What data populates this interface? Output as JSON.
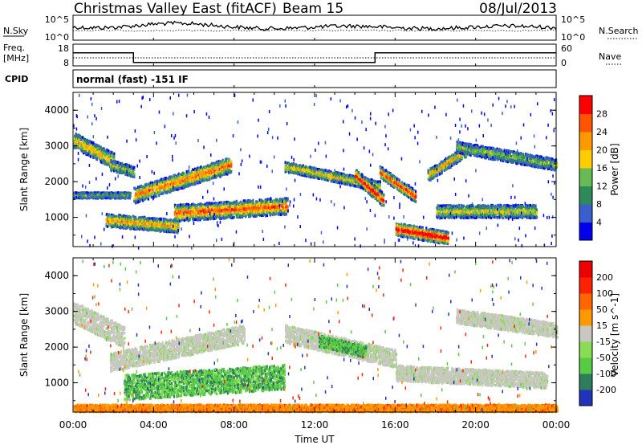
{
  "header": {
    "title": "Christmas Valley East (fitACF)",
    "beam": "Beam 15",
    "date": "08/Jul/2013"
  },
  "strip_nsky": {
    "label": "N.Sky",
    "right_label": "N.Search",
    "ticks_left": [
      "10^5",
      "10^0"
    ],
    "ticks_right": [
      "10^5",
      "10^0"
    ]
  },
  "strip_freq": {
    "label_line1": "Freq.",
    "label_line2": "[MHz]",
    "ticks_left": [
      "18",
      "8"
    ],
    "right_label": "Nave",
    "ticks_right": [
      "60",
      "0"
    ],
    "steps": [
      {
        "t0": 0.0,
        "t1": 3.0,
        "freq": 14.0
      },
      {
        "t0": 3.0,
        "t1": 15.0,
        "freq": 9.6
      },
      {
        "t0": 15.0,
        "t1": 24.0,
        "freq": 14.0
      }
    ]
  },
  "cpid": {
    "label": "CPID",
    "text": "normal (fast) -151 IF"
  },
  "x_axis": {
    "label": "Time UT",
    "ticks": [
      "00:00",
      "04:00",
      "08:00",
      "12:00",
      "16:00",
      "20:00",
      "00:00"
    ]
  },
  "chart_data": [
    {
      "type": "heatmap",
      "name": "power-panel",
      "ylabel": "Slant Range [km]",
      "yticks": [
        "4000",
        "3000",
        "2000",
        "1000"
      ],
      "xrange_hours": [
        0,
        24
      ],
      "yrange_km": [
        180,
        4500
      ],
      "colorbar_label": "Power [dB]",
      "colorbar_ticks": [
        "28",
        "24",
        "20",
        "16",
        "12",
        "8",
        "4"
      ],
      "colorbar_colors": [
        "#0000ee",
        "#3a5fcd",
        "#2e8b57",
        "#66bb55",
        "#ffcc00",
        "#ff9900",
        "#ff5500",
        "#ff0000"
      ],
      "bands": [
        {
          "t0": 0.0,
          "t1": 2.0,
          "r0": 3200,
          "r1": 2600,
          "w": 220,
          "lvl": 0.55
        },
        {
          "t0": 1.8,
          "t1": 3.0,
          "r0": 2500,
          "r1": 2300,
          "w": 150,
          "lvl": 0.4
        },
        {
          "t0": 0.0,
          "t1": 2.8,
          "r0": 1650,
          "r1": 1650,
          "w": 80,
          "lvl": 0.3
        },
        {
          "t0": 1.6,
          "t1": 5.2,
          "r0": 950,
          "r1": 780,
          "w": 180,
          "lvl": 0.6
        },
        {
          "t0": 3.0,
          "t1": 7.8,
          "r0": 1650,
          "r1": 2500,
          "w": 220,
          "lvl": 0.7
        },
        {
          "t0": 5.0,
          "t1": 10.6,
          "r0": 1150,
          "r1": 1350,
          "w": 230,
          "lvl": 0.75
        },
        {
          "t0": 10.5,
          "t1": 15.2,
          "r0": 2450,
          "r1": 1900,
          "w": 140,
          "lvl": 0.5
        },
        {
          "t0": 14.0,
          "t1": 15.4,
          "r0": 2200,
          "r1": 1500,
          "w": 180,
          "lvl": 0.95
        },
        {
          "t0": 15.2,
          "t1": 17.0,
          "r0": 2300,
          "r1": 1600,
          "w": 160,
          "lvl": 0.85
        },
        {
          "t0": 16.0,
          "t1": 18.6,
          "r0": 700,
          "r1": 450,
          "w": 180,
          "lvl": 1.0
        },
        {
          "t0": 18.0,
          "t1": 23.0,
          "r0": 1200,
          "r1": 1200,
          "w": 180,
          "lvl": 0.45
        },
        {
          "t0": 17.6,
          "t1": 19.5,
          "r0": 2200,
          "r1": 2900,
          "w": 160,
          "lvl": 0.6
        },
        {
          "t0": 19.0,
          "t1": 24.0,
          "r0": 3000,
          "r1": 2500,
          "w": 160,
          "lvl": 0.35
        }
      ]
    },
    {
      "type": "heatmap",
      "name": "velocity-panel",
      "ylabel": "Slant Range [km]",
      "yticks": [
        "4000",
        "3000",
        "2000",
        "1000"
      ],
      "xrange_hours": [
        0,
        24
      ],
      "yrange_km": [
        180,
        4500
      ],
      "colorbar_label": "Velocity [m s^-1]",
      "colorbar_ticks": [
        "200",
        "100",
        "50",
        "15",
        "-15",
        "-50",
        "-100",
        "-200"
      ],
      "colorbar_colors": [
        "#2233bb",
        "#2e7d5b",
        "#55cc44",
        "#88dd55",
        "#c8c8c0",
        "#ff9900",
        "#ff6600",
        "#ff2200",
        "#ee0000"
      ],
      "bands": [
        {
          "t0": 0.0,
          "t1": 2.5,
          "r0": 3000,
          "r1": 2300,
          "w": 300,
          "v": "gray"
        },
        {
          "t0": 1.8,
          "t1": 8.5,
          "r0": 1600,
          "r1": 2400,
          "w": 260,
          "v": "gray"
        },
        {
          "t0": 2.5,
          "t1": 10.5,
          "r0": 900,
          "r1": 1200,
          "w": 350,
          "v": "green"
        },
        {
          "t0": 10.5,
          "t1": 16.0,
          "r0": 2400,
          "r1": 1700,
          "w": 250,
          "v": "gray"
        },
        {
          "t0": 12.2,
          "t1": 14.5,
          "r0": 2200,
          "r1": 1900,
          "w": 160,
          "v": "green"
        },
        {
          "t0": 16.0,
          "t1": 23.5,
          "r0": 1300,
          "r1": 1100,
          "w": 220,
          "v": "gray"
        },
        {
          "t0": 0.0,
          "t1": 24.0,
          "r0": 300,
          "r1": 300,
          "w": 120,
          "v": "orange"
        },
        {
          "t0": 19.0,
          "t1": 24.0,
          "r0": 2900,
          "r1": 2500,
          "w": 200,
          "v": "gray"
        }
      ]
    }
  ]
}
